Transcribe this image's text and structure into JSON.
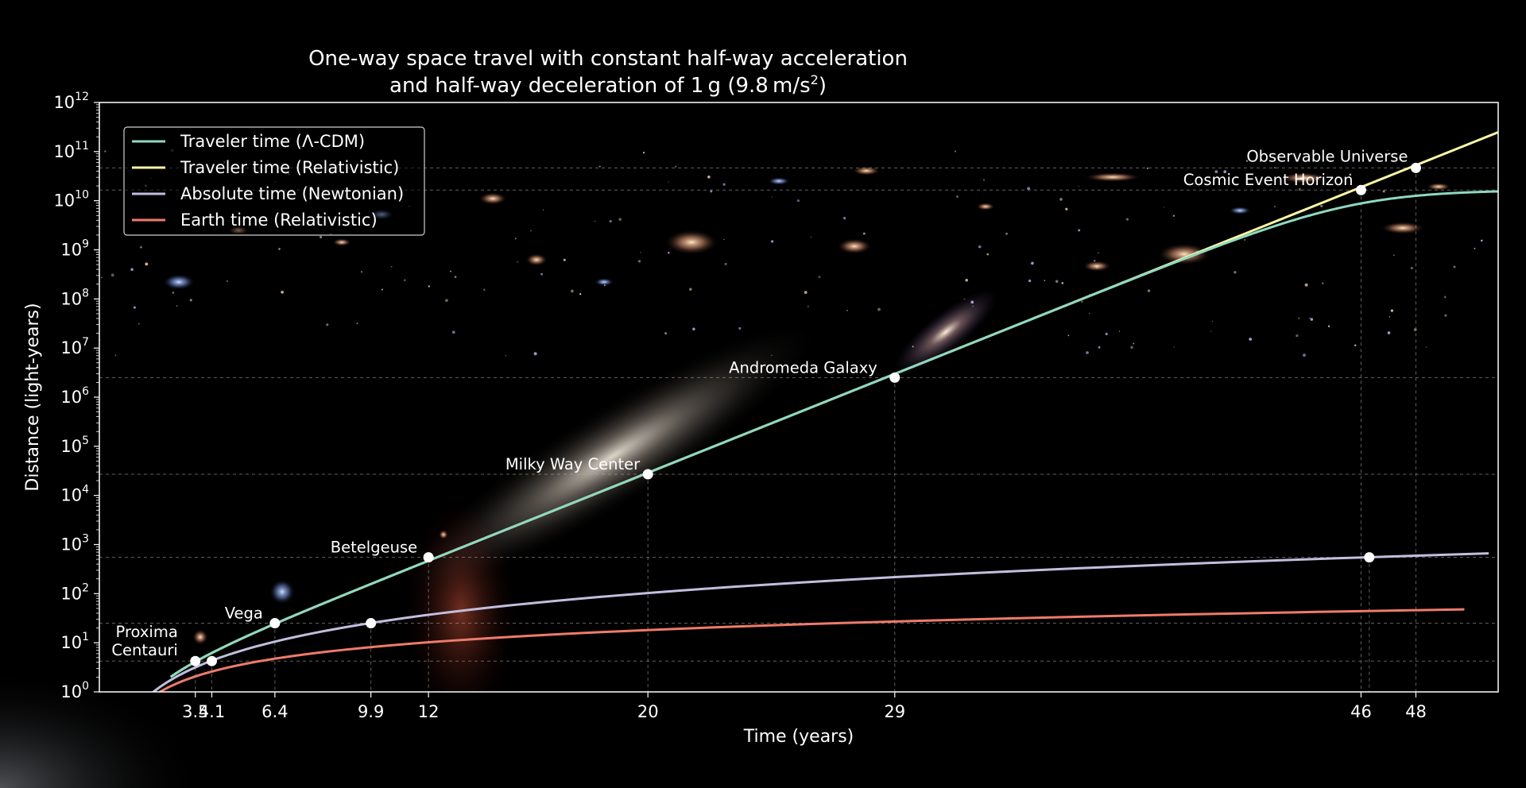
{
  "chart_data": {
    "type": "line",
    "title": [
      "One-way space travel with constant half-way acceleration",
      "and half-way deceleration of 1 g (9.8 m/s",
      "2",
      ")"
    ],
    "xlabel": "Time (years)",
    "ylabel": "Distance (light-years)",
    "xlim": [
      0,
      51
    ],
    "ylim": [
      1,
      1000000000000
    ],
    "yscale": "log",
    "grid": "dashed at destinations",
    "legend_position": "top-left",
    "x_ticks": [
      {
        "value": 3.5,
        "label": "3.5"
      },
      {
        "value": 4.1,
        "label": "4.1"
      },
      {
        "value": 6.4,
        "label": "6.4"
      },
      {
        "value": 9.9,
        "label": "9.9"
      },
      {
        "value": 12,
        "label": "12"
      },
      {
        "value": 20,
        "label": "20"
      },
      {
        "value": 29,
        "label": "29"
      },
      {
        "value": 46,
        "label": "46"
      },
      {
        "value": 48,
        "label": "48"
      }
    ],
    "y_ticks": [
      {
        "exp": 0,
        "base": "10",
        "sup": "0"
      },
      {
        "exp": 1,
        "base": "10",
        "sup": "1"
      },
      {
        "exp": 2,
        "base": "10",
        "sup": "2"
      },
      {
        "exp": 3,
        "base": "10",
        "sup": "3"
      },
      {
        "exp": 4,
        "base": "10",
        "sup": "4"
      },
      {
        "exp": 5,
        "base": "10",
        "sup": "5"
      },
      {
        "exp": 6,
        "base": "10",
        "sup": "6"
      },
      {
        "exp": 7,
        "base": "10",
        "sup": "7"
      },
      {
        "exp": 8,
        "base": "10",
        "sup": "8"
      },
      {
        "exp": 9,
        "base": "10",
        "sup": "9"
      },
      {
        "exp": 10,
        "base": "10",
        "sup": "10"
      },
      {
        "exp": 11,
        "base": "10",
        "sup": "11"
      },
      {
        "exp": 12,
        "base": "10",
        "sup": "12"
      }
    ],
    "series": [
      {
        "name": "Traveler time (Λ-CDM)",
        "color": "#8fd9bf",
        "model": "lcdm"
      },
      {
        "name": "Traveler time (Relativistic)",
        "color": "#fbf6a6",
        "model": "relativistic"
      },
      {
        "name": "Absolute time (Newtonian)",
        "color": "#c2bedf",
        "model": "newtonian"
      },
      {
        "name": "Earth time (Relativistic)",
        "color": "#ee7b6b",
        "model": "earth"
      }
    ],
    "destinations": [
      {
        "name": "Proxima Centauri",
        "label": [
          "Proxima",
          "Centauri"
        ],
        "distance": 4.24,
        "times": [
          3.5,
          4.1
        ]
      },
      {
        "name": "Vega",
        "label": [
          "Vega"
        ],
        "distance": 25,
        "times": [
          6.4,
          9.9
        ]
      },
      {
        "name": "Betelgeuse",
        "label": [
          "Betelgeuse"
        ],
        "distance": 548,
        "times": [
          12,
          46.3
        ]
      },
      {
        "name": "Milky Way Center",
        "label": [
          "Milky Way Center"
        ],
        "distance": 27000,
        "times": [
          20
        ]
      },
      {
        "name": "Andromeda Galaxy",
        "label": [
          "Andromeda Galaxy"
        ],
        "distance": 2500000,
        "times": [
          29
        ]
      },
      {
        "name": "Cosmic Event Horizon",
        "label": [
          "Cosmic Event Horizon"
        ],
        "distance": 16500000000,
        "times": [
          46
        ]
      },
      {
        "name": "Observable Universe",
        "label": [
          "Observable Universe"
        ],
        "distance": 46500000000,
        "times": [
          48
        ]
      }
    ],
    "background_colors": {
      "page": "#000000",
      "axes_edge": "#ffffff",
      "marker": "#ffffff"
    }
  }
}
